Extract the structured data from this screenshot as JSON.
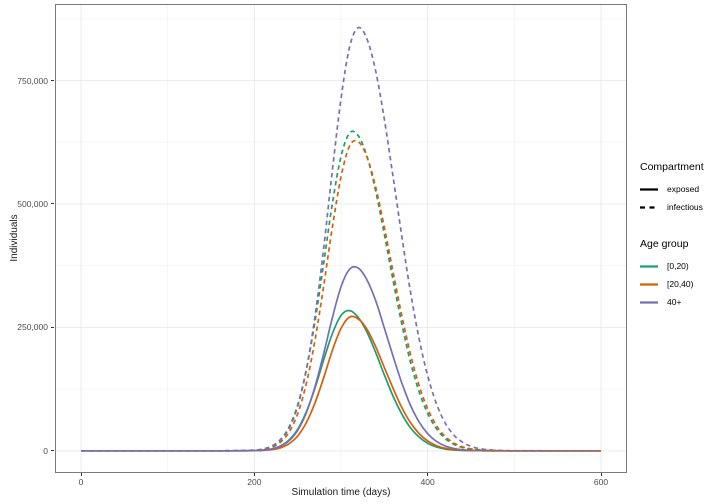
{
  "figure": {
    "background": "#ffffff",
    "panel_border_color": "#7a7a7a",
    "grid_major_color": "#ebebeb",
    "grid_minor_color": "#f5f5f5",
    "axis_text_color": "#4d4d4d"
  },
  "chart_data": {
    "type": "line",
    "title": "",
    "xlabel": "Simulation time (days)",
    "ylabel": "Individuals",
    "xlim": [
      -30,
      630
    ],
    "ylim": [
      -45000,
      905000
    ],
    "grid": true,
    "legend_position": "right",
    "x_ticks": [
      0,
      200,
      400,
      600
    ],
    "x_tick_labels": [
      "0",
      "200",
      "400",
      "600"
    ],
    "x_minor_ticks": [
      100,
      300,
      500
    ],
    "y_ticks": [
      0,
      250000,
      500000,
      750000
    ],
    "y_tick_labels": [
      "0",
      "250,000",
      "500,000",
      "750,000"
    ],
    "y_minor_ticks": [
      125000,
      375000,
      625000,
      875000
    ],
    "x": [
      0,
      50,
      100,
      150,
      175,
      200,
      210,
      220,
      230,
      240,
      250,
      260,
      270,
      280,
      290,
      300,
      310,
      320,
      330,
      340,
      350,
      360,
      370,
      380,
      390,
      400,
      410,
      420,
      430,
      440,
      450,
      460,
      470,
      480,
      490,
      500,
      550,
      600
    ],
    "series": [
      {
        "id": "exposed-0-20",
        "name": "exposed [0,20)",
        "compartment": "exposed",
        "age_group": "[0,20)",
        "linetype": "solid",
        "color": "#1B9E77",
        "values": [
          0,
          0,
          0,
          0,
          0,
          400,
          1400,
          3800,
          9700,
          21800,
          43800,
          79000,
          127000,
          184000,
          237000,
          274000,
          284000,
          270000,
          240000,
          199000,
          154000,
          111000,
          75000,
          47000,
          28000,
          15200,
          7700,
          3700,
          1600,
          700,
          300,
          100,
          0,
          0,
          0,
          0,
          0,
          0
        ]
      },
      {
        "id": "exposed-20-40",
        "name": "exposed [20,40)",
        "compartment": "exposed",
        "age_group": "[20,40)",
        "linetype": "solid",
        "color": "#D95F02",
        "values": [
          0,
          0,
          0,
          0,
          0,
          200,
          800,
          2200,
          5900,
          14100,
          30000,
          57000,
          97000,
          148000,
          203000,
          248000,
          271000,
          267000,
          246000,
          211000,
          169000,
          127000,
          88000,
          57500,
          35000,
          19800,
          10500,
          5200,
          2400,
          1000,
          400,
          200,
          0,
          0,
          0,
          0,
          0,
          0
        ]
      },
      {
        "id": "exposed-40plus",
        "name": "exposed 40+",
        "compartment": "exposed",
        "age_group": "40+",
        "linetype": "solid",
        "color": "#7570B3",
        "values": [
          0,
          0,
          0,
          0,
          0,
          400,
          1200,
          3400,
          8700,
          20000,
          41400,
          77000,
          130000,
          197000,
          269000,
          332000,
          368000,
          370000,
          346000,
          304000,
          249000,
          192000,
          138000,
          93000,
          58700,
          34700,
          19200,
          9900,
          4800,
          2200,
          900,
          400,
          200,
          0,
          0,
          0,
          0,
          0
        ]
      },
      {
        "id": "infectious-0-20",
        "name": "infectious [0,20)",
        "compartment": "infectious",
        "age_group": "[0,20)",
        "linetype": "dashed",
        "color": "#1B9E77",
        "values": [
          0,
          0,
          0,
          0,
          100,
          1300,
          3600,
          9500,
          22400,
          48000,
          93000,
          164000,
          262000,
          380000,
          500000,
          596000,
          644000,
          638000,
          596000,
          526000,
          439000,
          346000,
          258000,
          181000,
          120500,
          75700,
          45100,
          25200,
          13400,
          6700,
          3200,
          1400,
          600,
          300,
          100,
          0,
          0,
          0
        ]
      },
      {
        "id": "infectious-20-40",
        "name": "infectious [20,40)",
        "compartment": "infectious",
        "age_group": "[20,40)",
        "linetype": "dashed",
        "color": "#D95F02",
        "values": [
          0,
          0,
          0,
          0,
          100,
          900,
          2600,
          7000,
          17000,
          37500,
          75000,
          136000,
          224000,
          334000,
          452000,
          555000,
          618000,
          626000,
          595000,
          534000,
          453000,
          363000,
          275000,
          197000,
          133000,
          85000,
          51400,
          29300,
          15800,
          8100,
          3900,
          1800,
          800,
          300,
          100,
          0,
          0,
          0
        ]
      },
      {
        "id": "infectious-40plus",
        "name": "infectious 40+",
        "compartment": "infectious",
        "age_group": "40+",
        "linetype": "dashed",
        "color": "#7570B3",
        "values": [
          0,
          0,
          0,
          0,
          200,
          1200,
          3300,
          8700,
          21000,
          45000,
          90000,
          164000,
          272000,
          411000,
          567000,
          713000,
          819000,
          857000,
          834000,
          769000,
          672000,
          556000,
          436000,
          324000,
          228000,
          152000,
          96000,
          57000,
          32000,
          17500,
          8900,
          4300,
          2000,
          900,
          400,
          200,
          0,
          0
        ]
      }
    ],
    "legend": {
      "compartment": {
        "title": "Compartment",
        "key_color": "#000000",
        "items": [
          {
            "label": "exposed",
            "linetype": "solid"
          },
          {
            "label": "infectious",
            "linetype": "dashed"
          }
        ]
      },
      "age_group": {
        "title": "Age group",
        "items": [
          {
            "label": "[0,20)",
            "color": "#1B9E77"
          },
          {
            "label": "[20,40)",
            "color": "#D95F02"
          },
          {
            "label": "40+",
            "color": "#7570B3"
          }
        ]
      }
    }
  }
}
